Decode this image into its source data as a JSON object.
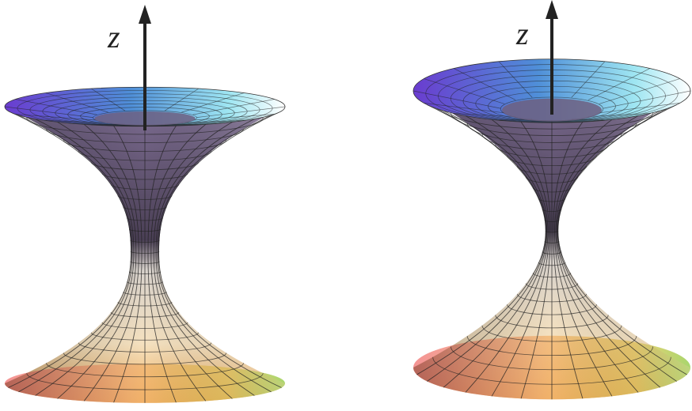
{
  "figures": [
    {
      "axis_label": "z"
    },
    {
      "axis_label": "z"
    }
  ]
}
